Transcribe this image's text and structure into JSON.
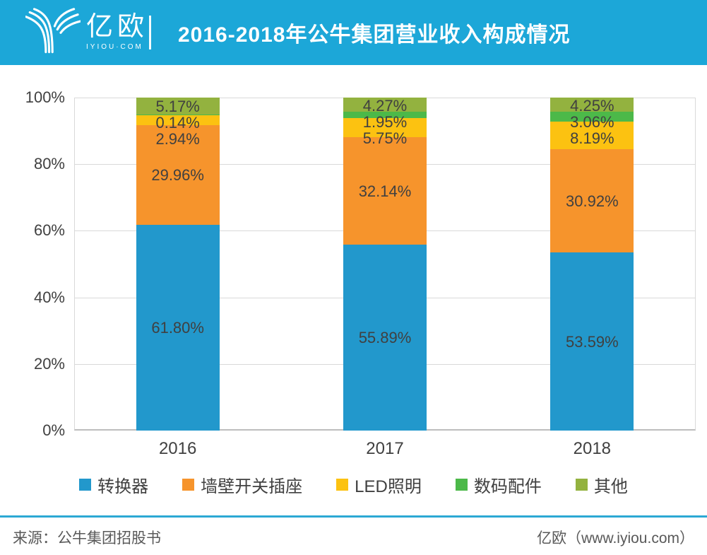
{
  "header": {
    "logo_cn": "亿欧",
    "logo_en": "IYIOU·COM",
    "title": "2016-2018年公牛集团营业收入构成情况"
  },
  "chart_data": {
    "type": "bar",
    "subtype": "stacked-percent",
    "title": "2016-2018年公牛集团营业收入构成情况",
    "categories": [
      "2016",
      "2017",
      "2018"
    ],
    "series": [
      {
        "name": "转换器",
        "color": "#2298CC",
        "values": [
          61.8,
          55.89,
          53.59
        ],
        "labels": [
          "61.80%",
          "55.89%",
          "53.59%"
        ]
      },
      {
        "name": "墙壁开关插座",
        "color": "#F6942C",
        "values": [
          29.96,
          32.14,
          30.92
        ],
        "labels": [
          "29.96%",
          "32.14%",
          "30.92%"
        ]
      },
      {
        "name": "LED照明",
        "color": "#FCC211",
        "values": [
          2.94,
          5.75,
          8.19
        ],
        "labels": [
          "2.94%",
          "5.75%",
          "8.19%"
        ]
      },
      {
        "name": "数码配件",
        "color": "#4CB949",
        "values": [
          0.14,
          1.95,
          3.06
        ],
        "labels": [
          "0.14%",
          "1.95%",
          "3.06%"
        ]
      },
      {
        "name": "其他",
        "color": "#93B23F",
        "values": [
          5.17,
          4.27,
          4.25
        ],
        "labels": [
          "5.17%",
          "4.27%",
          "4.25%"
        ]
      }
    ],
    "y_axis": {
      "min": 0,
      "max": 100,
      "ticks": [
        "0%",
        "20%",
        "40%",
        "60%",
        "80%",
        "100%"
      ]
    },
    "grid": true,
    "legend_position": "bottom",
    "label_color": "#404040"
  },
  "footer": {
    "source": "来源：公牛集团招股书",
    "credit": "亿欧（www.iyiou.com）"
  },
  "colors": {
    "header_bg": "#1CA7D8",
    "grid": "#D9D9D9",
    "axis": "#BDBDBD",
    "text": "#404040",
    "footer_text": "#595959",
    "footer_line": "#2CA9D4"
  }
}
